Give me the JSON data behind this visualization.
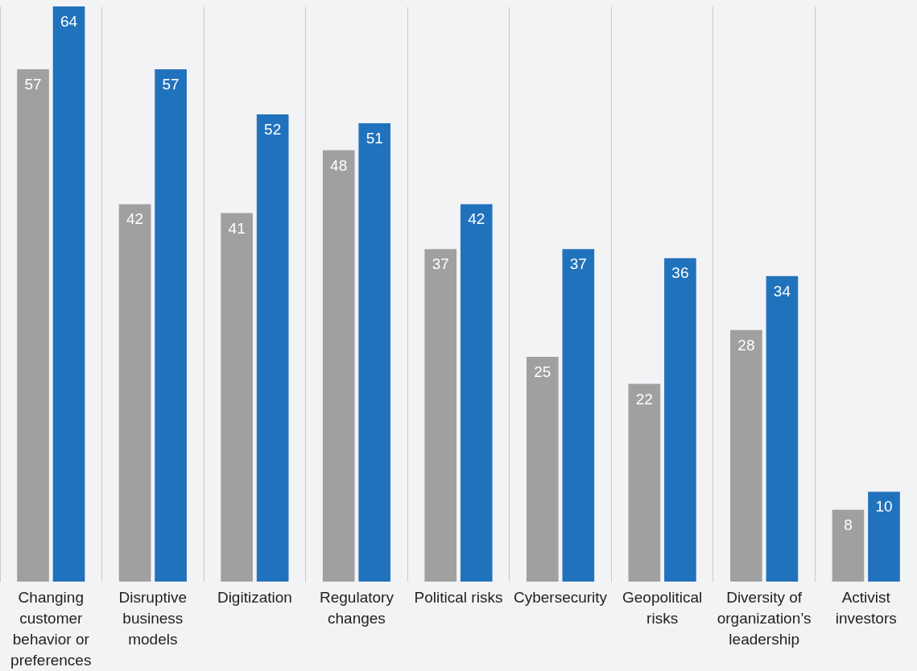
{
  "chart_data": {
    "type": "bar",
    "categories": [
      "Changing customer behavior or preferences",
      "Disruptive business models",
      "Digitization",
      "Regulatory changes",
      "Political risks",
      "Cybersecurity",
      "Geopolitical risks",
      "Diversity of organization’s leadership",
      "Activist investors"
    ],
    "series": [
      {
        "color": "#a0a0a0",
        "values": [
          57,
          42,
          41,
          48,
          37,
          25,
          22,
          28,
          8
        ]
      },
      {
        "color": "#2172bd",
        "values": [
          64,
          57,
          52,
          51,
          42,
          37,
          36,
          34,
          10
        ]
      }
    ],
    "data_labels": true,
    "grid": "x"
  }
}
